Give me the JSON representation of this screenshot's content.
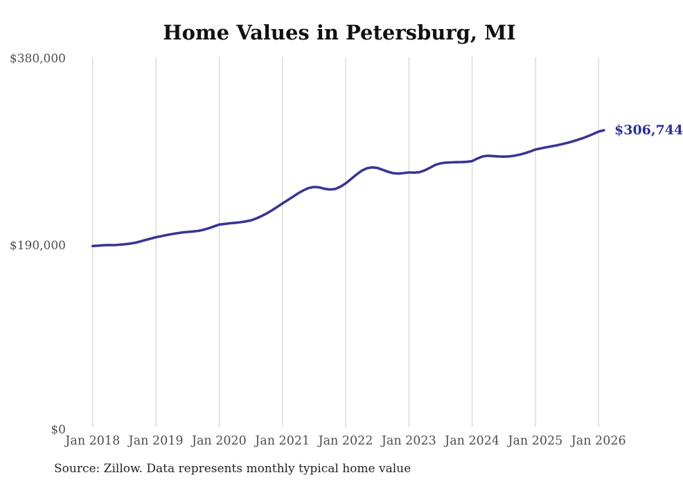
{
  "title": "Home Values in Petersburg, MI",
  "source_note": "Source: Zillow. Data represents monthly typical home value",
  "end_label": "$306,744",
  "colors": {
    "line": "#3a3494",
    "end_label": "#2b2e9b",
    "gridline": "#cccccc",
    "axis_text": "#4d4d4d",
    "title_text": "#111111",
    "source_text": "#222222"
  },
  "y_axis": {
    "ticks": [
      {
        "label": "$0",
        "value": 0
      },
      {
        "label": "$190,000",
        "value": 190000
      },
      {
        "label": "$380,000",
        "value": 380000
      }
    ],
    "max": 380000
  },
  "x_axis": {
    "tick_labels": [
      "Jan 2018",
      "Jan 2019",
      "Jan 2020",
      "Jan 2021",
      "Jan 2022",
      "Jan 2023",
      "Jan 2024",
      "Jan 2025",
      "Jan 2026"
    ],
    "tick_month_indices": [
      0,
      12,
      24,
      36,
      48,
      60,
      72,
      84,
      96
    ]
  },
  "chart_data": {
    "type": "line",
    "title": "Home Values in Petersburg, MI",
    "unit": "USD",
    "frequency": "monthly",
    "start_month": "Jan 2018",
    "end_month": "Feb 2026",
    "ylim": [
      0,
      380000
    ],
    "grid": "vertical-only",
    "x_tick_labels": [
      "Jan 2018",
      "Jan 2019",
      "Jan 2020",
      "Jan 2021",
      "Jan 2022",
      "Jan 2023",
      "Jan 2024",
      "Jan 2025",
      "Jan 2026"
    ],
    "values": [
      188000,
      188400,
      188800,
      189000,
      188900,
      189300,
      189800,
      190400,
      191300,
      192700,
      194200,
      195600,
      197000,
      198100,
      199200,
      200200,
      201100,
      201900,
      202400,
      202900,
      203500,
      204600,
      206200,
      208100,
      210000,
      210700,
      211300,
      211800,
      212400,
      213200,
      214300,
      216200,
      218600,
      221400,
      224600,
      228100,
      231600,
      235100,
      238600,
      242100,
      245100,
      247500,
      248600,
      248200,
      246700,
      246000,
      246500,
      248800,
      252200,
      256600,
      261100,
      265100,
      267700,
      268700,
      268100,
      266200,
      264200,
      262700,
      262300,
      262800,
      263500,
      263300,
      263700,
      265600,
      268300,
      271200,
      272800,
      273500,
      273800,
      274000,
      274100,
      274400,
      275100,
      277800,
      279900,
      280600,
      280300,
      279900,
      279700,
      279900,
      280600,
      281700,
      283200,
      285000,
      287000,
      288100,
      289200,
      290200,
      291200,
      292400,
      293700,
      295200,
      296900,
      298700,
      300700,
      303000,
      305400,
      306744
    ],
    "final_value": 306744,
    "final_value_label": "$306,744"
  }
}
